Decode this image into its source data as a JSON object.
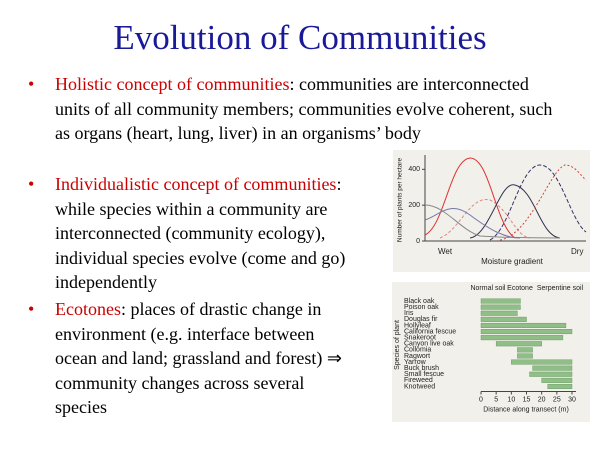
{
  "slide": {
    "title": "Evolution of Communities",
    "bullets": [
      {
        "term": "Holistic concept of communities",
        "text": ": communities are interconnected units of all community members; communities evolve coherent, such as organs (heart, lung, liver) in an organisms’ body"
      },
      {
        "term": "Individualistic concept of communities",
        "text": ": while species within a community are interconnected (community ecology), individual species evolve (come and go) independently"
      },
      {
        "term": "Ecotones",
        "text": ": places of drastic change in environment (e.g. interface between ocean and land; grassland and forest) ⇒ community changes across several species"
      }
    ]
  },
  "figure1": {
    "y_label": "Number of plants per hectare",
    "x_label": "Moisture gradient",
    "x_left": "Wet",
    "x_right": "Dry",
    "ylim": [
      0,
      480
    ],
    "yticks": [
      0,
      200,
      400
    ]
  },
  "figure2": {
    "y_label": "Species of plant",
    "x_label": "Distance along transect (m)",
    "zones": [
      "Normal soil",
      "Ecotone",
      "Serpentine soil"
    ],
    "xlim": [
      0,
      30
    ],
    "xticks": [
      0,
      5,
      10,
      15,
      20,
      25,
      30
    ],
    "bars": [
      {
        "name": "Black oak",
        "start": 0,
        "end": 13
      },
      {
        "name": "Poison oak",
        "start": 0,
        "end": 13
      },
      {
        "name": "Iris",
        "start": 0,
        "end": 12
      },
      {
        "name": "Douglas fir",
        "start": 0,
        "end": 15
      },
      {
        "name": "Hollyleaf",
        "start": 0,
        "end": 28
      },
      {
        "name": "California fescue",
        "start": 0,
        "end": 30
      },
      {
        "name": "Snakeroot",
        "start": 0,
        "end": 27
      },
      {
        "name": "Canyon live oak",
        "start": 5,
        "end": 20
      },
      {
        "name": "Collomia",
        "start": 12,
        "end": 17
      },
      {
        "name": "Ragwort",
        "start": 12,
        "end": 17
      },
      {
        "name": "Yarrow",
        "start": 10,
        "end": 30
      },
      {
        "name": "Buck brush",
        "start": 17,
        "end": 30
      },
      {
        "name": "Small fescue",
        "start": 16,
        "end": 30
      },
      {
        "name": "Fireweed",
        "start": 20,
        "end": 30
      },
      {
        "name": "Knotweed",
        "start": 22,
        "end": 30
      }
    ]
  }
}
